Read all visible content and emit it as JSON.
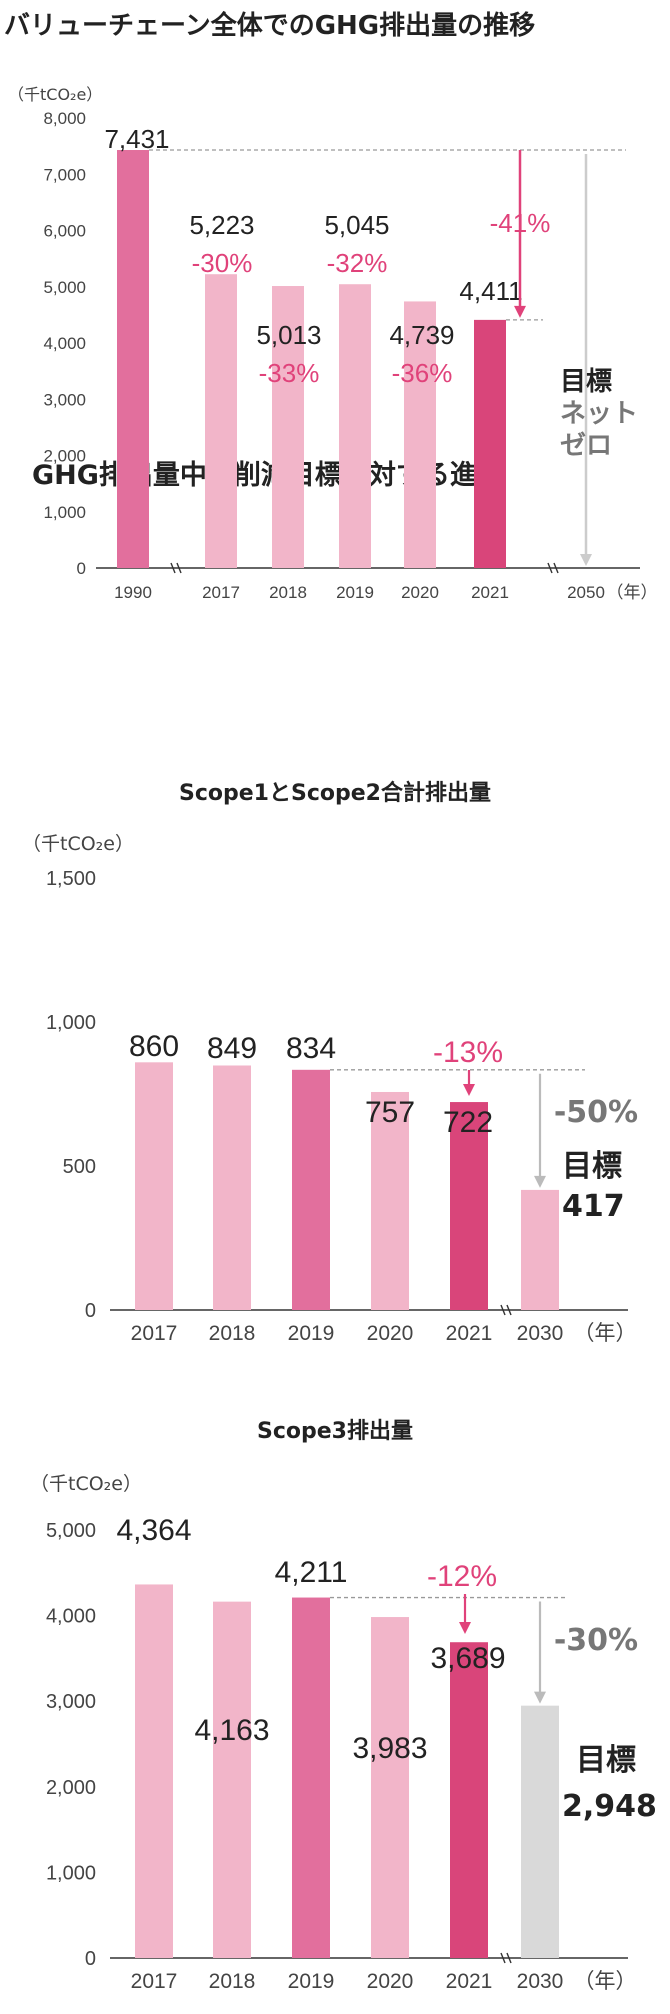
{
  "sections": {
    "main_title": "バリューチェーン全体でのGHG排出量の推移",
    "mid_title": "GHG排出量中期削減目標に対する進捗"
  },
  "colors": {
    "light_pink": "#f2b5c9",
    "mid_pink": "#e26f9d",
    "dark_pink": "#d9457a",
    "accent": "#e0427a",
    "gray_bar": "#d9d9d9",
    "gray_text": "#777777",
    "axis": "#333333",
    "dashed": "#999999"
  },
  "chart_data": [
    {
      "type": "bar",
      "title": "バリューチェーン全体でのGHG排出量の推移",
      "unit": "（千tCO₂e）",
      "yticks": [
        "8,000",
        "7,000",
        "6,000",
        "5,000",
        "4,000",
        "3,000",
        "2,000",
        "1,000",
        "0"
      ],
      "ylim": [
        0,
        8000
      ],
      "categories": [
        "1990",
        "2017",
        "2018",
        "2019",
        "2020",
        "2021",
        "2050"
      ],
      "values": [
        7431,
        5223,
        5013,
        5045,
        4739,
        4411,
        null
      ],
      "value_labels": [
        "7,431",
        "5,223",
        "5,013",
        "5,045",
        "4,739",
        "4,411",
        ""
      ],
      "pct_labels": [
        "",
        "-30%",
        "-33%",
        "-32%",
        "-36%",
        "-41%",
        ""
      ],
      "bar_colors": [
        "mid_pink",
        "light_pink",
        "light_pink",
        "light_pink",
        "light_pink",
        "dark_pink",
        ""
      ],
      "x_unit": "（年）",
      "target_label_lines": [
        "目標",
        "ネット",
        "ゼロ"
      ]
    },
    {
      "type": "bar",
      "title": "Scope1とScope2合計排出量",
      "unit": "（千tCO₂e）",
      "yticks": [
        "1,500",
        "1,000",
        "500",
        "0"
      ],
      "ylim": [
        0,
        1500
      ],
      "categories": [
        "2017",
        "2018",
        "2019",
        "2020",
        "2021",
        "2030"
      ],
      "values": [
        860,
        849,
        834,
        757,
        722,
        417
      ],
      "value_labels": [
        "860",
        "849",
        "834",
        "757",
        "722",
        ""
      ],
      "bar_colors": [
        "light_pink",
        "light_pink",
        "mid_pink",
        "light_pink",
        "dark_pink",
        "light_pink"
      ],
      "change_pct": "-13%",
      "target_pct": "-50%",
      "target_word": "目標",
      "target_value": "417",
      "x_unit": "（年）"
    },
    {
      "type": "bar",
      "title": "Scope3排出量",
      "unit": "（千tCO₂e）",
      "yticks": [
        "5,000",
        "4,000",
        "3,000",
        "2,000",
        "1,000",
        "0"
      ],
      "ylim": [
        0,
        5000
      ],
      "categories": [
        "2017",
        "2018",
        "2019",
        "2020",
        "2021",
        "2030"
      ],
      "values": [
        4364,
        4163,
        4211,
        3983,
        3689,
        2948
      ],
      "value_labels": [
        "4,364",
        "4,163",
        "4,211",
        "3,983",
        "3,689",
        ""
      ],
      "bar_colors": [
        "light_pink",
        "light_pink",
        "mid_pink",
        "light_pink",
        "dark_pink",
        "gray_bar"
      ],
      "change_pct": "-12%",
      "target_pct": "-30%",
      "target_word": "目標",
      "target_value": "2,948",
      "x_unit": "（年）"
    }
  ]
}
